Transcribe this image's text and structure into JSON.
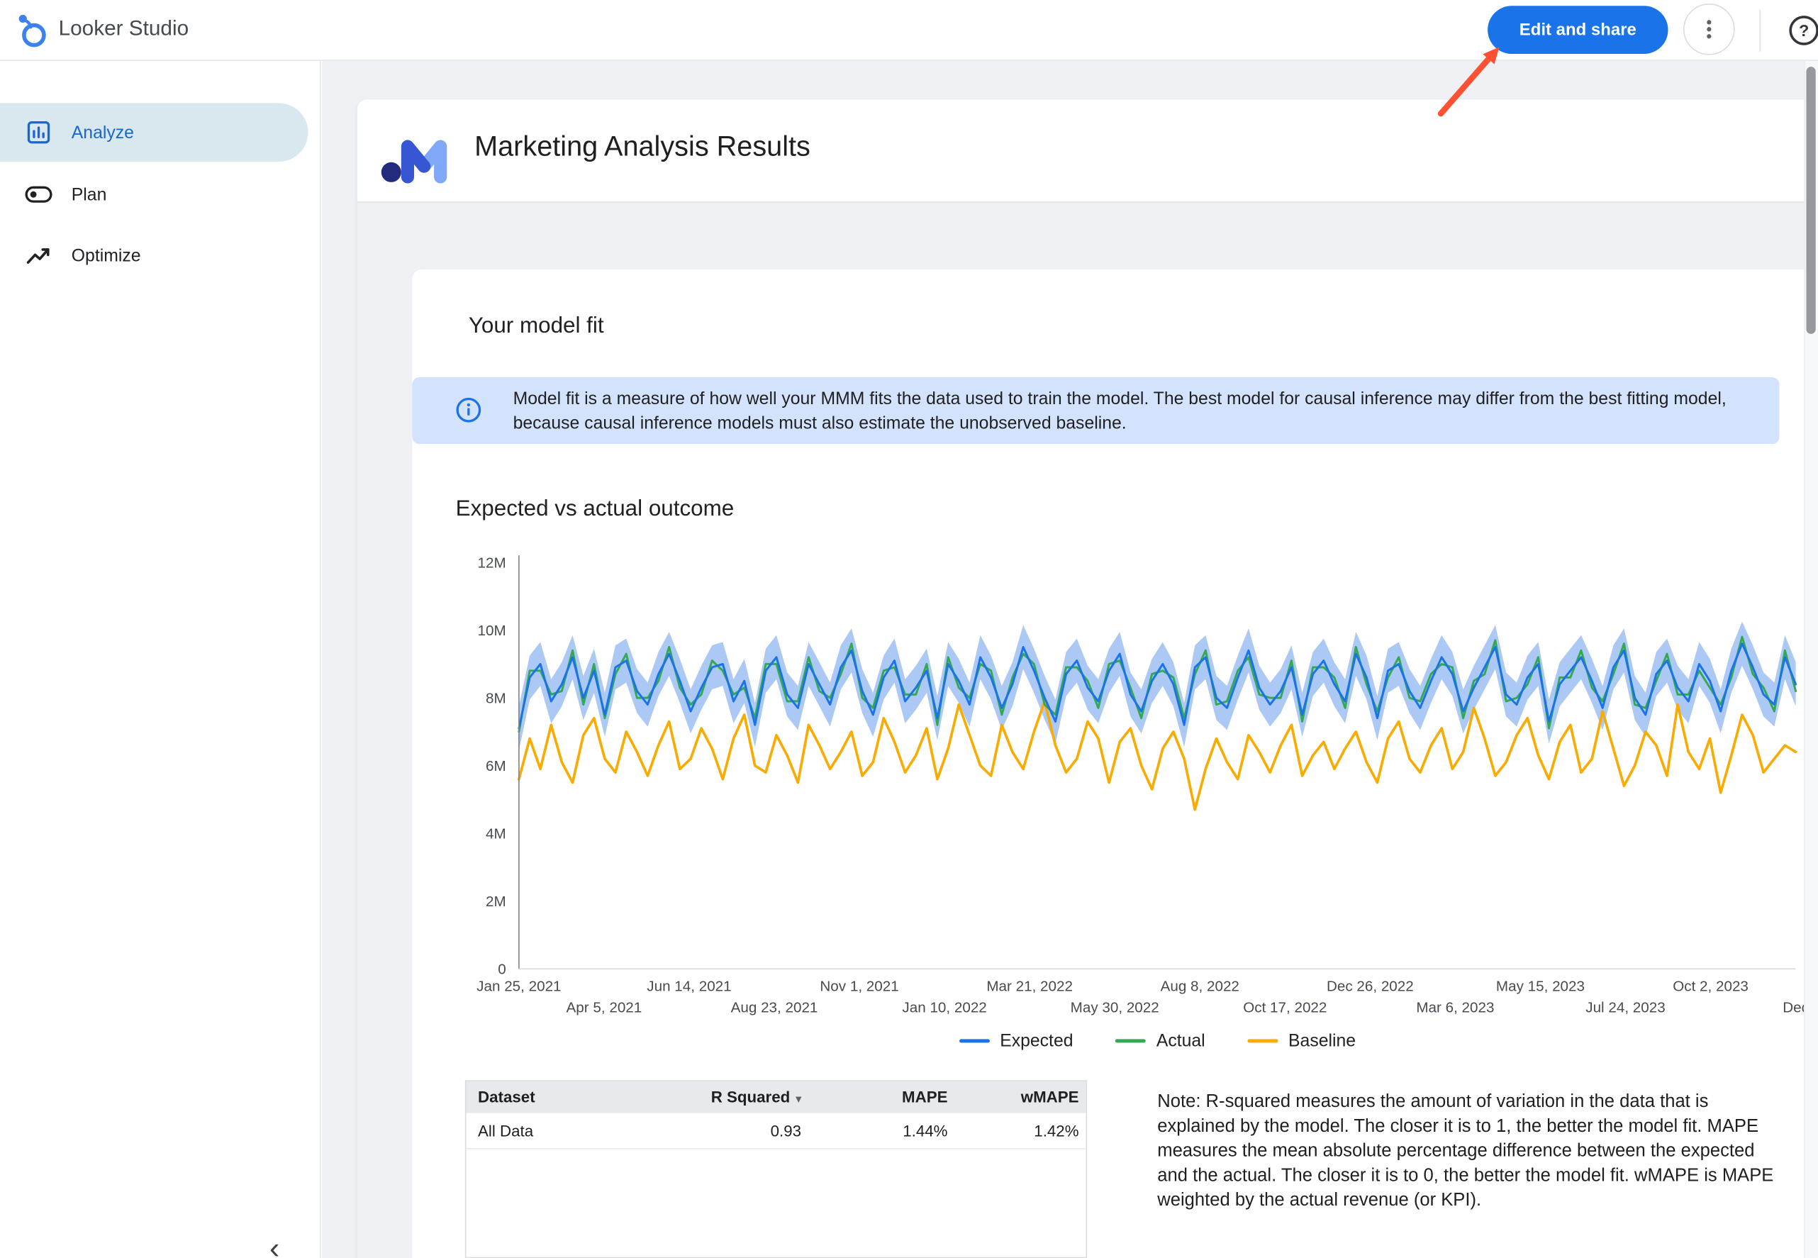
{
  "topbar": {
    "app_name": "Looker Studio",
    "edit_share_label": "Edit and share"
  },
  "icons": {
    "help_glyph": "?"
  },
  "sidebar": {
    "items": [
      {
        "label": "Analyze",
        "selected": true
      },
      {
        "label": "Plan",
        "selected": false
      },
      {
        "label": "Optimize",
        "selected": false
      }
    ],
    "collapse_icon": "‹"
  },
  "report": {
    "title": "Marketing Analysis Results",
    "card_title": "Your model fit",
    "info_banner": "Model fit is a measure of how well your MMM fits the data used to train the model. The best model for causal inference may differ from the best fitting model, because causal inference models must also estimate the unobserved baseline.",
    "note": "Note: R-squared measures the amount of variation in the data that is explained by the model. The closer it is to 1, the better the model fit. MAPE measures the mean absolute percentage difference between the expected and the actual. The closer it is to 0, the better the model fit. wMAPE is MAPE weighted by the actual revenue (or KPI)."
  },
  "table": {
    "headers": [
      "Dataset",
      "R Squared",
      "MAPE",
      "wMAPE"
    ],
    "sort": {
      "column": "R Squared",
      "indicator": "▾",
      "direction": "desc"
    },
    "rows": [
      [
        "All Data",
        "0.93",
        "1.44%",
        "1.42%"
      ]
    ]
  },
  "chart_data": {
    "type": "line",
    "title": "Expected vs actual outcome",
    "xlabel": "",
    "ylabel": "",
    "units": "millions",
    "ylim_m": [
      0,
      12
    ],
    "grid": false,
    "legend_position": "bottom",
    "y_ticks": [
      "0",
      "2M",
      "4M",
      "6M",
      "8M",
      "10M",
      "12M"
    ],
    "x_ticks": [
      {
        "label": "Jan 25, 2021",
        "row": 1
      },
      {
        "label": "Apr 5, 2021",
        "row": 2
      },
      {
        "label": "Jun 14, 2021",
        "row": 1
      },
      {
        "label": "Aug 23, 2021",
        "row": 2
      },
      {
        "label": "Nov 1, 2021",
        "row": 1
      },
      {
        "label": "Jan 10, 2022",
        "row": 2
      },
      {
        "label": "Mar 21, 2022",
        "row": 1
      },
      {
        "label": "May 30, 2022",
        "row": 2
      },
      {
        "label": "Aug 8, 2022",
        "row": 1
      },
      {
        "label": "Oct 17, 2022",
        "row": 2
      },
      {
        "label": "Dec 26, 2022",
        "row": 1
      },
      {
        "label": "Mar 6, 2023",
        "row": 2
      },
      {
        "label": "May 15, 2023",
        "row": 1
      },
      {
        "label": "Jul 24, 2023",
        "row": 2
      },
      {
        "label": "Oct 2, 2023",
        "row": 1
      },
      {
        "label": "Dec",
        "row": 2
      }
    ],
    "band": {
      "series": "Expected",
      "halfwidth_m": 0.65,
      "color": "#a3c2f4",
      "opacity": 0.9
    },
    "series": [
      {
        "name": "Expected",
        "color": "#1a73e8",
        "values_m": [
          7.1,
          8.6,
          9.0,
          7.9,
          8.4,
          9.2,
          8.0,
          8.8,
          7.5,
          8.9,
          9.1,
          8.2,
          7.8,
          8.7,
          9.3,
          8.5,
          7.6,
          8.3,
          8.9,
          9.0,
          7.9,
          8.5,
          7.2,
          8.8,
          9.2,
          8.1,
          7.7,
          9.0,
          8.4,
          7.8,
          8.9,
          9.4,
          8.2,
          7.5,
          8.6,
          9.1,
          7.9,
          8.3,
          8.8,
          7.4,
          9.0,
          8.5,
          7.8,
          9.2,
          8.6,
          7.7,
          8.4,
          9.5,
          8.8,
          8.0,
          7.3,
          8.7,
          9.1,
          8.3,
          7.9,
          8.8,
          9.3,
          8.1,
          7.6,
          8.5,
          9.0,
          8.4,
          7.2,
          8.9,
          9.2,
          8.0,
          7.7,
          8.6,
          9.4,
          8.3,
          7.8,
          8.2,
          8.9,
          7.5,
          8.7,
          9.1,
          8.4,
          7.9,
          9.3,
          8.6,
          7.4,
          8.8,
          9.0,
          8.2,
          7.7,
          8.5,
          9.2,
          8.7,
          7.6,
          8.3,
          8.9,
          9.5,
          8.1,
          7.8,
          8.6,
          9.0,
          7.3,
          8.4,
          8.8,
          9.2,
          8.5,
          7.7,
          8.9,
          9.4,
          8.0,
          7.5,
          8.7,
          9.1,
          8.3,
          7.9,
          9.0,
          8.5,
          7.6,
          8.8,
          9.6,
          8.9,
          8.1,
          7.8,
          9.2,
          8.4
        ]
      },
      {
        "name": "Actual",
        "color": "#34a853",
        "values_m": [
          7.0,
          8.8,
          8.8,
          8.1,
          8.2,
          9.4,
          7.8,
          9.0,
          7.4,
          8.7,
          9.3,
          8.0,
          8.0,
          8.5,
          9.5,
          8.3,
          7.8,
          8.1,
          9.1,
          8.8,
          8.1,
          8.3,
          7.4,
          9.0,
          9.0,
          7.9,
          7.9,
          9.2,
          8.2,
          8.0,
          8.7,
          9.6,
          8.0,
          7.7,
          8.8,
          8.9,
          8.1,
          8.1,
          9.0,
          7.2,
          9.2,
          8.3,
          8.0,
          9.0,
          8.8,
          7.5,
          8.6,
          9.3,
          9.0,
          7.8,
          7.5,
          8.9,
          8.9,
          8.5,
          7.7,
          9.0,
          9.1,
          8.3,
          7.4,
          8.7,
          8.8,
          8.6,
          7.4,
          8.7,
          9.4,
          7.8,
          7.9,
          8.8,
          9.2,
          8.1,
          8.0,
          8.0,
          9.1,
          7.3,
          8.9,
          8.9,
          8.6,
          7.7,
          9.5,
          8.4,
          7.6,
          8.6,
          9.2,
          8.0,
          7.9,
          8.7,
          9.0,
          8.9,
          7.4,
          8.5,
          8.7,
          9.7,
          7.9,
          8.0,
          8.4,
          9.2,
          7.1,
          8.6,
          8.6,
          9.4,
          8.3,
          7.9,
          8.7,
          9.6,
          7.8,
          7.7,
          8.5,
          9.3,
          8.1,
          8.1,
          8.8,
          8.3,
          7.8,
          8.6,
          9.8,
          8.7,
          8.3,
          7.6,
          9.4,
          8.2
        ]
      },
      {
        "name": "Baseline",
        "color": "#f9ab00",
        "values_m": [
          5.6,
          6.8,
          5.9,
          7.2,
          6.1,
          5.5,
          6.9,
          7.4,
          6.2,
          5.8,
          7.0,
          6.4,
          5.7,
          6.6,
          7.3,
          5.9,
          6.2,
          7.1,
          6.5,
          5.6,
          6.8,
          7.5,
          6.0,
          5.8,
          6.9,
          6.3,
          5.5,
          7.2,
          6.6,
          5.9,
          6.4,
          7.0,
          5.7,
          6.1,
          7.4,
          6.7,
          5.8,
          6.3,
          7.1,
          5.6,
          6.5,
          7.8,
          6.9,
          6.0,
          5.7,
          7.2,
          6.4,
          5.9,
          7.0,
          7.9,
          6.6,
          5.8,
          6.2,
          7.3,
          6.8,
          5.5,
          6.7,
          7.1,
          6.0,
          5.3,
          6.5,
          7.0,
          6.2,
          4.7,
          5.9,
          6.8,
          6.1,
          5.6,
          6.9,
          6.4,
          5.8,
          6.6,
          7.2,
          5.7,
          6.3,
          6.7,
          5.9,
          6.5,
          7.0,
          6.1,
          5.5,
          6.8,
          7.3,
          6.2,
          5.8,
          6.6,
          7.1,
          5.9,
          6.4,
          7.7,
          6.8,
          5.7,
          6.1,
          6.9,
          7.4,
          6.3,
          5.6,
          6.7,
          7.2,
          5.8,
          6.2,
          7.6,
          6.5,
          5.4,
          6.0,
          7.0,
          6.6,
          5.7,
          7.8,
          6.4,
          5.9,
          6.8,
          5.2,
          6.3,
          7.5,
          6.9,
          5.8,
          6.2,
          6.6,
          6.4
        ]
      }
    ]
  }
}
